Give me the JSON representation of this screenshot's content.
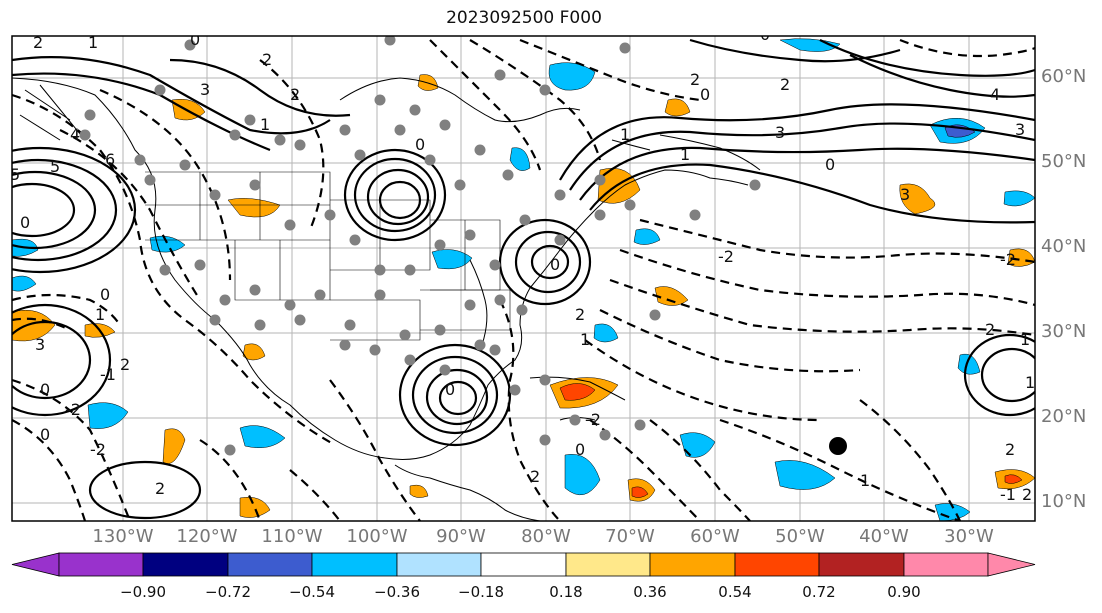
{
  "title": "2023092500 F000",
  "lat_labels": [
    "60°N",
    "50°N",
    "40°N",
    "30°N",
    "20°N",
    "10°N"
  ],
  "lon_labels": [
    "130°W",
    "120°W",
    "110°W",
    "100°W",
    "90°W",
    "80°W",
    "70°W",
    "60°W",
    "50°W",
    "40°W",
    "30°W"
  ],
  "contour_labels": [
    "2",
    "1",
    "0",
    "3",
    "4",
    "5",
    "6",
    "-2",
    "-1"
  ],
  "colorbar": {
    "ticks": [
      "−0.90",
      "−0.72",
      "−0.54",
      "−0.36",
      "−0.18",
      "0.18",
      "0.36",
      "0.54",
      "0.72",
      "0.90"
    ],
    "colors": [
      "#9932cc",
      "#000080",
      "#3d5ccf",
      "#00bfff",
      "#b0e2ff",
      "#ffffff",
      "#ffe88a",
      "#ffa500",
      "#ff4500",
      "#b22222",
      "#ff88aa"
    ]
  },
  "colors": {
    "cool": "#00bfff",
    "warm": "#ffa500",
    "hot": "#ff4500",
    "marker": "#000000",
    "station": "#808080"
  }
}
